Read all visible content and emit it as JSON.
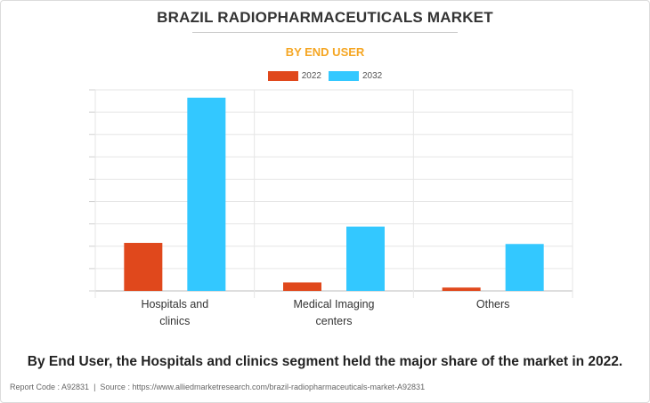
{
  "header": {
    "title": "BRAZIL RADIOPHARMACEUTICALS MARKET",
    "subtitle": "BY END USER"
  },
  "legend": {
    "items": [
      {
        "label": "2022",
        "color": "#e0481c"
      },
      {
        "label": "2032",
        "color": "#33c8ff"
      }
    ]
  },
  "chart_data": {
    "type": "bar",
    "categories": [
      [
        "Hospitals and",
        "clinics"
      ],
      [
        "Medical Imaging",
        "centers"
      ],
      [
        "Others"
      ]
    ],
    "series": [
      {
        "name": "2022",
        "color": "#e0481c",
        "values": [
          21.5,
          3.8,
          1.5
        ]
      },
      {
        "name": "2032",
        "color": "#33c8ff",
        "values": [
          86.5,
          28.8,
          21.0
        ]
      }
    ],
    "ylim": [
      0,
      90
    ],
    "grid": true,
    "legend_position": "top-center",
    "y_tick_labels_shown": false
  },
  "conclusion": "By End User, the Hospitals and clinics segment held the major share of the market in 2022.",
  "footer": {
    "report_code": "Report Code : A92831",
    "separator": "|",
    "source": "Source : https://www.alliedmarketresearch.com/brazil-radiopharmaceuticals-market-A92831"
  }
}
